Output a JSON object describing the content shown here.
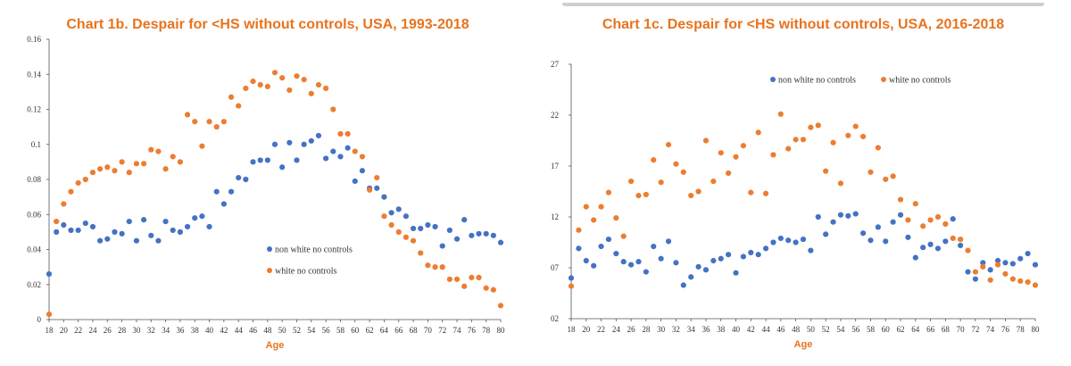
{
  "charts": [
    {
      "id": "left",
      "title": "Chart 1b. Despair for <HS without controls, USA, 1993-2018",
      "xlabel": "Age",
      "ylabel": "",
      "legend": [
        "non white no controls",
        "white no controls"
      ]
    },
    {
      "id": "right",
      "title": "Chart 1c. Despair for <HS without controls, USA, 2016-2018",
      "xlabel": "Age",
      "ylabel": "",
      "legend": [
        "non white no controls",
        "white no controls"
      ]
    }
  ],
  "colors": {
    "title": "#e8731e",
    "nonwhite": "#4472c4",
    "white": "#ed7d31",
    "axis": "#555555"
  },
  "chart_data": [
    {
      "type": "scatter",
      "title": "Chart 1b. Despair for <HS without controls, USA, 1993-2018",
      "xlabel": "Age",
      "ylabel": "",
      "xlim": [
        18,
        80
      ],
      "ylim": [
        0,
        0.16
      ],
      "x_ticks": [
        "18",
        "20",
        "22",
        "24",
        "26",
        "28",
        "30",
        "32",
        "34",
        "36",
        "38",
        "40",
        "42",
        "44",
        "46",
        "48",
        "50",
        "52",
        "54",
        "56",
        "58",
        "60",
        "62",
        "64",
        "66",
        "68",
        "70",
        "72",
        "74",
        "76",
        "78",
        "80"
      ],
      "y_ticks": [
        "0",
        "0.02",
        "0.04",
        "0.06",
        "0.08",
        "0.1",
        "0.12",
        "0.14",
        "0.16"
      ],
      "legend_position": "right-middle",
      "grid": false,
      "x": [
        18,
        19,
        20,
        21,
        22,
        23,
        24,
        25,
        26,
        27,
        28,
        29,
        30,
        31,
        32,
        33,
        34,
        35,
        36,
        37,
        38,
        39,
        40,
        41,
        42,
        43,
        44,
        45,
        46,
        47,
        48,
        49,
        50,
        51,
        52,
        53,
        54,
        55,
        56,
        57,
        58,
        59,
        60,
        61,
        62,
        63,
        64,
        65,
        66,
        67,
        68,
        69,
        70,
        71,
        72,
        73,
        74,
        75,
        76,
        77,
        78,
        79,
        80
      ],
      "series": [
        {
          "name": "non white no controls",
          "color": "#4472c4",
          "values": [
            0.026,
            0.05,
            0.054,
            0.051,
            0.051,
            0.055,
            0.053,
            0.045,
            0.046,
            0.05,
            0.049,
            0.056,
            0.045,
            0.057,
            0.048,
            0.045,
            0.056,
            0.051,
            0.05,
            0.053,
            0.058,
            0.059,
            0.053,
            0.073,
            0.066,
            0.073,
            0.081,
            0.08,
            0.09,
            0.091,
            0.091,
            0.1,
            0.087,
            0.101,
            0.091,
            0.1,
            0.102,
            0.105,
            0.092,
            0.096,
            0.093,
            0.098,
            0.079,
            0.085,
            0.075,
            0.075,
            0.07,
            0.061,
            0.063,
            0.059,
            0.052,
            0.052,
            0.054,
            0.053,
            0.042,
            0.051,
            0.046,
            0.057,
            0.048,
            0.049,
            0.049,
            0.048,
            0.044
          ]
        },
        {
          "name": "white no controls",
          "color": "#ed7d31",
          "values": [
            0.003,
            0.056,
            0.066,
            0.073,
            0.078,
            0.08,
            0.084,
            0.086,
            0.087,
            0.085,
            0.09,
            0.084,
            0.089,
            0.089,
            0.097,
            0.096,
            0.086,
            0.093,
            0.09,
            0.117,
            0.113,
            0.099,
            0.113,
            0.11,
            0.113,
            0.127,
            0.122,
            0.132,
            0.136,
            0.134,
            0.133,
            0.141,
            0.138,
            0.131,
            0.139,
            0.137,
            0.129,
            0.134,
            0.132,
            0.12,
            0.106,
            0.106,
            0.096,
            0.093,
            0.074,
            0.081,
            0.059,
            0.054,
            0.05,
            0.047,
            0.045,
            0.038,
            0.031,
            0.03,
            0.03,
            0.023,
            0.023,
            0.019,
            0.024,
            0.024,
            0.018,
            0.017,
            0.008
          ]
        }
      ]
    },
    {
      "type": "scatter",
      "title": "Chart 1c. Despair for <HS without controls, USA, 2016-2018",
      "xlabel": "Age",
      "ylabel": "",
      "xlim": [
        18,
        80
      ],
      "ylim": [
        2,
        27
      ],
      "x_ticks": [
        "18",
        "20",
        "22",
        "24",
        "26",
        "28",
        "30",
        "32",
        "34",
        "36",
        "38",
        "40",
        "42",
        "44",
        "46",
        "48",
        "50",
        "52",
        "54",
        "56",
        "58",
        "60",
        "62",
        "64",
        "66",
        "68",
        "70",
        "72",
        "74",
        "76",
        "78",
        "80"
      ],
      "y_ticks": [
        "02",
        "07",
        "12",
        "17",
        "22",
        "27"
      ],
      "legend_position": "top-center",
      "grid": false,
      "x": [
        18,
        19,
        20,
        21,
        22,
        23,
        24,
        25,
        26,
        27,
        28,
        29,
        30,
        31,
        32,
        33,
        34,
        35,
        36,
        37,
        38,
        39,
        40,
        41,
        42,
        43,
        44,
        45,
        46,
        47,
        48,
        49,
        50,
        51,
        52,
        53,
        54,
        55,
        56,
        57,
        58,
        59,
        60,
        61,
        62,
        63,
        64,
        65,
        66,
        67,
        68,
        69,
        70,
        71,
        72,
        73,
        74,
        75,
        76,
        77,
        78,
        79,
        80
      ],
      "series": [
        {
          "name": "non white no controls",
          "color": "#4472c4",
          "values": [
            6.0,
            8.9,
            7.7,
            7.2,
            9.1,
            9.8,
            8.4,
            7.6,
            7.3,
            7.6,
            6.6,
            9.1,
            7.9,
            9.6,
            7.5,
            5.3,
            6.1,
            7.1,
            6.8,
            7.7,
            7.9,
            8.3,
            6.5,
            8.1,
            8.5,
            8.3,
            8.9,
            9.5,
            9.9,
            9.7,
            9.5,
            9.8,
            8.7,
            12.0,
            10.3,
            11.5,
            12.2,
            12.1,
            12.3,
            10.4,
            9.7,
            11.0,
            9.6,
            11.5,
            12.2,
            10.0,
            8.0,
            9.0,
            9.3,
            8.9,
            9.6,
            11.8,
            9.2,
            6.6,
            5.9,
            7.5,
            6.8,
            7.7,
            7.5,
            7.4,
            7.9,
            8.4,
            7.3
          ]
        },
        {
          "name": "white no controls",
          "color": "#ed7d31",
          "values": [
            5.2,
            10.7,
            13.0,
            11.7,
            13.0,
            14.4,
            11.9,
            10.1,
            15.5,
            14.1,
            14.2,
            17.6,
            15.4,
            19.1,
            17.2,
            16.4,
            14.1,
            14.5,
            19.5,
            15.5,
            18.3,
            16.3,
            17.9,
            19.0,
            14.4,
            20.3,
            14.3,
            18.1,
            22.1,
            18.7,
            19.6,
            19.6,
            20.8,
            21.0,
            16.5,
            19.3,
            15.3,
            20.0,
            20.9,
            19.9,
            16.4,
            18.8,
            15.7,
            16.0,
            13.7,
            11.7,
            13.3,
            11.1,
            11.7,
            12.0,
            11.3,
            9.9,
            9.8,
            8.7,
            6.6,
            7.1,
            5.8,
            7.3,
            6.4,
            5.9,
            5.7,
            5.6,
            5.3
          ]
        }
      ]
    }
  ]
}
